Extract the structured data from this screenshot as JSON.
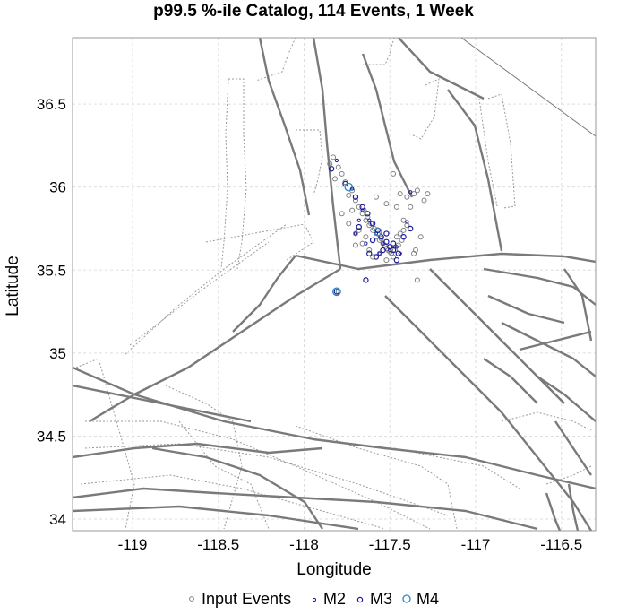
{
  "chart_data": {
    "type": "scatter",
    "title": "p99.5 %-ile Catalog, 114 Events, 1 Week",
    "xlabel": "Longitude",
    "ylabel": "Latitude",
    "xlim": [
      -119.35,
      -116.3
    ],
    "ylim": [
      33.93,
      36.9
    ],
    "xticks": [
      -119,
      -118.5,
      -118,
      -117.5,
      -117,
      -116.5
    ],
    "xtick_labels": [
      "-119",
      "-118.5",
      "-118",
      "-117.5",
      "-117",
      "-116.5"
    ],
    "yticks": [
      34,
      34.5,
      35,
      35.5,
      36,
      36.5
    ],
    "ytick_labels": [
      "34",
      "34.5",
      "35",
      "35.5",
      "36",
      "36.5"
    ],
    "grid": true,
    "legend_position": "bottom",
    "colors": {
      "input_events": "#808080",
      "m2": "#1a1a99",
      "m3": "#1a1a99",
      "m4": "#2e86c1",
      "faults": "#7a7a7a",
      "grid": "#dddddd"
    },
    "series": [
      {
        "name": "Input Events",
        "marker": "small-gray-circle",
        "points": [
          [
            -117.83,
            36.18
          ],
          [
            -117.8,
            36.12
          ],
          [
            -117.82,
            36.05
          ],
          [
            -117.78,
            36.08
          ],
          [
            -117.85,
            36.14
          ],
          [
            -117.76,
            36.03
          ],
          [
            -117.72,
            35.98
          ],
          [
            -117.7,
            35.92
          ],
          [
            -117.74,
            35.95
          ],
          [
            -117.68,
            35.88
          ],
          [
            -117.66,
            35.84
          ],
          [
            -117.64,
            35.8
          ],
          [
            -117.62,
            35.77
          ],
          [
            -117.6,
            35.74
          ],
          [
            -117.58,
            35.7
          ],
          [
            -117.56,
            35.68
          ],
          [
            -117.54,
            35.66
          ],
          [
            -117.52,
            35.63
          ],
          [
            -117.5,
            35.61
          ],
          [
            -117.48,
            35.58
          ],
          [
            -117.65,
            35.86
          ],
          [
            -117.63,
            35.82
          ],
          [
            -117.61,
            35.78
          ],
          [
            -117.59,
            35.75
          ],
          [
            -117.57,
            35.72
          ],
          [
            -117.55,
            35.69
          ],
          [
            -117.53,
            35.65
          ],
          [
            -117.51,
            35.62
          ],
          [
            -117.49,
            35.6
          ],
          [
            -117.47,
            35.62
          ],
          [
            -117.45,
            35.65
          ],
          [
            -117.43,
            35.68
          ],
          [
            -117.46,
            35.7
          ],
          [
            -117.44,
            35.72
          ],
          [
            -117.42,
            35.74
          ],
          [
            -117.4,
            35.77
          ],
          [
            -117.42,
            35.8
          ],
          [
            -117.38,
            35.88
          ],
          [
            -117.36,
            35.96
          ],
          [
            -117.4,
            35.94
          ],
          [
            -117.44,
            35.96
          ],
          [
            -117.34,
            35.98
          ],
          [
            -117.3,
            35.92
          ],
          [
            -117.28,
            35.96
          ],
          [
            -117.32,
            35.7
          ],
          [
            -117.35,
            35.62
          ],
          [
            -117.6,
            35.58
          ],
          [
            -117.62,
            35.62
          ],
          [
            -117.66,
            35.66
          ],
          [
            -117.7,
            35.72
          ],
          [
            -117.74,
            35.78
          ],
          [
            -117.78,
            35.84
          ],
          [
            -117.72,
            35.86
          ],
          [
            -117.68,
            35.74
          ],
          [
            -117.64,
            35.7
          ],
          [
            -117.48,
            36.08
          ],
          [
            -117.52,
            35.9
          ],
          [
            -117.58,
            35.94
          ],
          [
            -117.46,
            35.88
          ],
          [
            -117.36,
            35.6
          ],
          [
            -117.34,
            35.44
          ],
          [
            -117.8,
            35.37
          ],
          [
            -117.7,
            35.65
          ],
          [
            -117.56,
            35.6
          ],
          [
            -117.52,
            35.56
          ]
        ]
      },
      {
        "name": "M2",
        "marker": "tiny-navy-circle",
        "points": [
          [
            -117.81,
            36.16
          ],
          [
            -117.72,
            35.99
          ],
          [
            -117.66,
            35.86
          ],
          [
            -117.62,
            35.8
          ],
          [
            -117.58,
            35.72
          ],
          [
            -117.54,
            35.66
          ],
          [
            -117.5,
            35.62
          ],
          [
            -117.46,
            35.64
          ],
          [
            -117.4,
            35.79
          ],
          [
            -117.38,
            35.97
          ],
          [
            -117.7,
            35.72
          ],
          [
            -117.64,
            35.66
          ],
          [
            -117.56,
            35.6
          ],
          [
            -117.44,
            35.6
          ],
          [
            -117.68,
            35.8
          ]
        ]
      },
      {
        "name": "M3",
        "marker": "navy-circle",
        "points": [
          [
            -117.84,
            36.11
          ],
          [
            -117.76,
            36.02
          ],
          [
            -117.7,
            35.94
          ],
          [
            -117.66,
            35.88
          ],
          [
            -117.63,
            35.84
          ],
          [
            -117.6,
            35.78
          ],
          [
            -117.57,
            35.74
          ],
          [
            -117.55,
            35.7
          ],
          [
            -117.52,
            35.67
          ],
          [
            -117.5,
            35.64
          ],
          [
            -117.48,
            35.62
          ],
          [
            -117.45,
            35.6
          ],
          [
            -117.42,
            35.7
          ],
          [
            -117.38,
            35.75
          ],
          [
            -117.62,
            35.6
          ],
          [
            -117.58,
            35.58
          ],
          [
            -117.46,
            35.56
          ],
          [
            -117.64,
            35.44
          ],
          [
            -117.81,
            35.37
          ],
          [
            -117.54,
            35.62
          ],
          [
            -117.68,
            35.76
          ],
          [
            -117.6,
            35.68
          ],
          [
            -117.52,
            35.72
          ],
          [
            -117.48,
            35.66
          ]
        ]
      },
      {
        "name": "M4",
        "marker": "blue-circle",
        "points": [
          [
            -117.74,
            36.0
          ],
          [
            -117.57,
            35.73
          ],
          [
            -117.81,
            35.37
          ]
        ]
      }
    ]
  }
}
